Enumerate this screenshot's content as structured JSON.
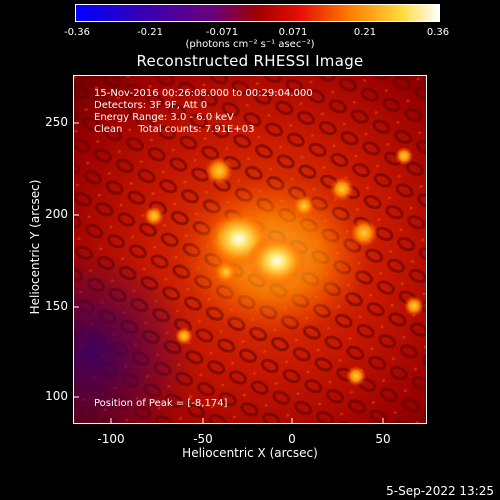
{
  "colorbar": {
    "ticks": [
      "-0.36",
      "-0.21",
      "-0.071",
      "0.071",
      "0.21",
      "0.36"
    ],
    "units": "(photons cm⁻² s⁻¹ asec⁻²)",
    "range": [
      -0.36,
      0.36
    ]
  },
  "image": {
    "title": "Reconstructed RHESSI Image",
    "info_lines": [
      "15-Nov-2016 00:26:08.000 to 00:29:04.000",
      "Detectors: 3F 9F, Att 0",
      "Energy Range: 3.0 - 6.0 keV",
      "Clean     Total counts: 7.91E+03"
    ],
    "peak_label": "Position of Peak = [-8,174]"
  },
  "axes": {
    "xlabel": "Heliocentric X (arcsec)",
    "ylabel": "Heliocentric Y (arcsec)",
    "xticks": [
      "-100",
      "-50",
      "0",
      "50"
    ],
    "yticks": [
      "250",
      "200",
      "150",
      "100"
    ],
    "xlim": [
      -118,
      72
    ],
    "ylim": [
      85,
      278
    ]
  },
  "footer": {
    "date": "5-Sep-2022 13:25"
  }
}
